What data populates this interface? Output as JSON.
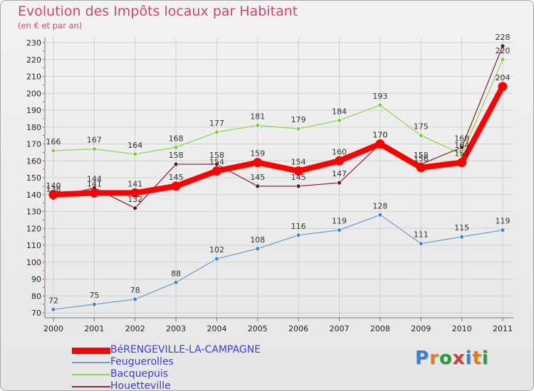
{
  "title": "Evolution des Impôts locaux par Habitant",
  "subtitle": "(en € et par an)",
  "logo": "Proxiti",
  "colors": {
    "title": "#d0427c",
    "grid": "#cfcfcf",
    "legend_text": "#3b3bd8",
    "logo": [
      "#3a7fd5",
      "#e07a1a",
      "#2a9d3a",
      "#d23b3b",
      "#3a7fd5",
      "#e07a1a",
      "#2a9d3a"
    ]
  },
  "chart_data": {
    "type": "line",
    "title": "Evolution des Impôts locaux par Habitant",
    "ylabel": "(en € et par an)",
    "xlabel": "",
    "x": [
      "2000",
      "2001",
      "2002",
      "2003",
      "2004",
      "2005",
      "2006",
      "2007",
      "2008",
      "2009",
      "2010",
      "2011"
    ],
    "yticks": [
      70,
      80,
      90,
      100,
      110,
      120,
      130,
      140,
      150,
      160,
      170,
      180,
      190,
      200,
      210,
      220,
      230
    ],
    "ylim": [
      70,
      230
    ],
    "grid": true,
    "series": [
      {
        "name": "BéRENGEVILLE-LA-CAMPAGNE",
        "color": "#ff0000",
        "style": "thick",
        "values": [
          140,
          141,
          141,
          145,
          154,
          159,
          154,
          160,
          170,
          156,
          159,
          204
        ]
      },
      {
        "name": "Feuguerolles",
        "color": "#6f9fc9",
        "style": "thin",
        "marker": "#3f88d0",
        "values": [
          72,
          75,
          78,
          88,
          102,
          108,
          116,
          119,
          128,
          111,
          115,
          119
        ]
      },
      {
        "name": "Bacquepuis",
        "color": "#8ed65a",
        "style": "thin",
        "marker": "#78d23c",
        "values": [
          166,
          167,
          164,
          168,
          177,
          181,
          179,
          184,
          193,
          175,
          164,
          220
        ]
      },
      {
        "name": "Houetteville",
        "color": "#8a2c3a",
        "style": "thin",
        "marker": "#5a1a1a",
        "values": [
          138,
          144,
          132,
          158,
          158,
          145,
          145,
          147,
          170,
          158,
          168,
          228
        ]
      }
    ]
  }
}
